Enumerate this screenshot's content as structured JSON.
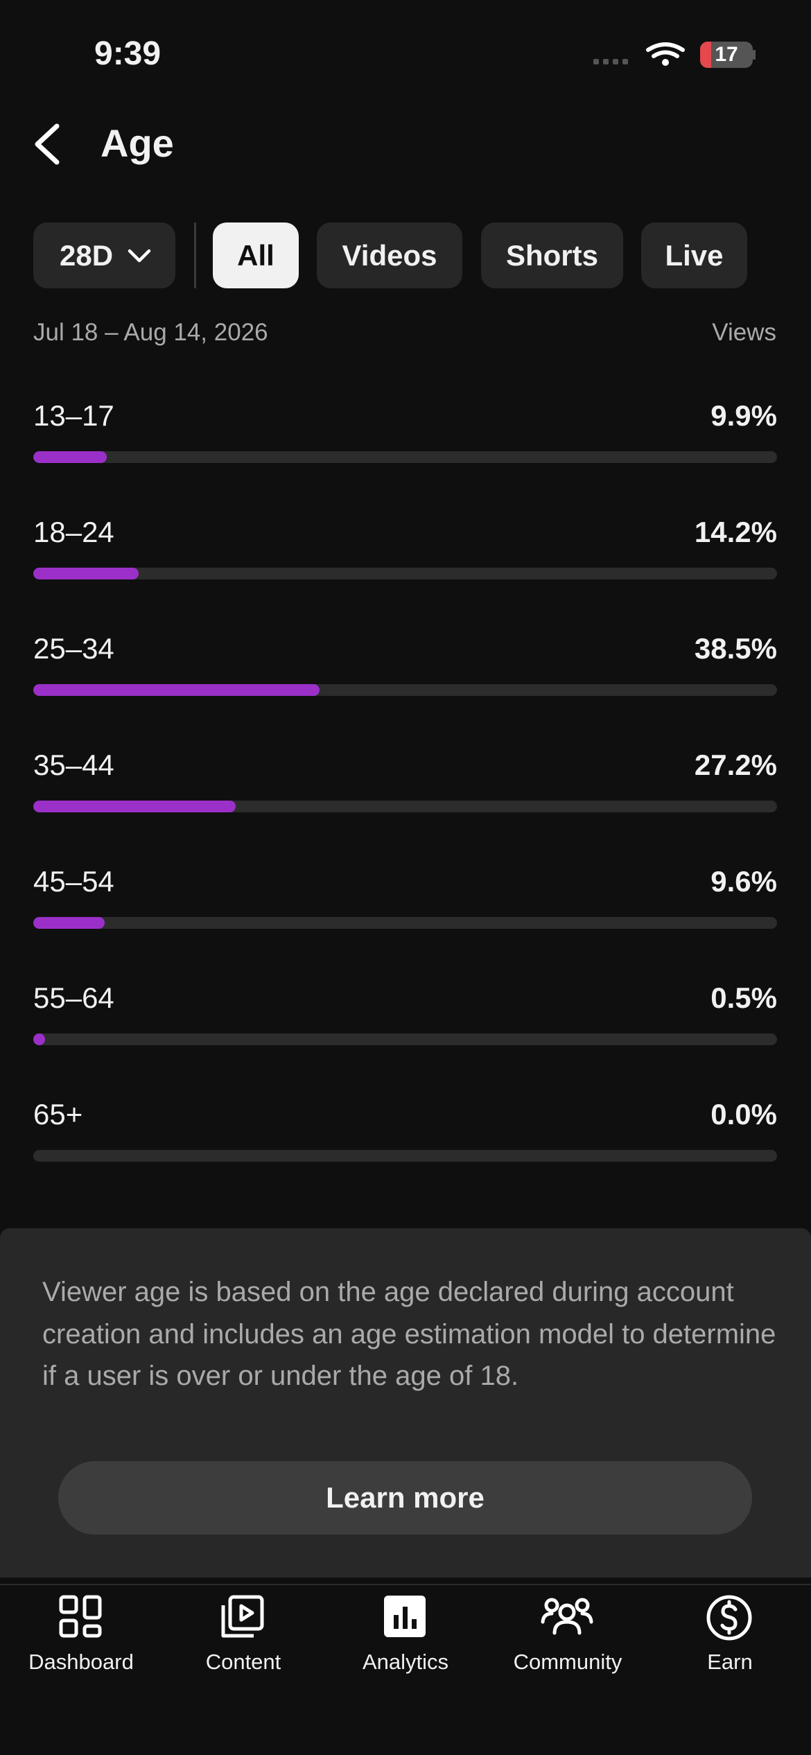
{
  "status": {
    "time": "9:39",
    "battery": "17"
  },
  "header": {
    "title": "Age"
  },
  "filters": {
    "period": "28D",
    "tabs": [
      "All",
      "Videos",
      "Shorts",
      "Live"
    ],
    "selected": "All"
  },
  "date_range": "Jul 18 – Aug 14, 2026",
  "metric": "Views",
  "chart_data": {
    "type": "bar",
    "orientation": "horizontal",
    "categories": [
      "13–17",
      "18–24",
      "25–34",
      "35–44",
      "45–54",
      "55–64",
      "65+"
    ],
    "values": [
      9.9,
      14.2,
      38.5,
      27.2,
      9.6,
      0.5,
      0.0
    ],
    "value_labels": [
      "9.9%",
      "14.2%",
      "38.5%",
      "27.2%",
      "9.6%",
      "0.5%",
      "0.0%"
    ],
    "xlim": [
      0,
      100
    ],
    "color": "#9b30c9"
  },
  "info": {
    "text": "Viewer age is based on the age declared during account creation and includes an age estimation model to determine if a user is over or under the age of 18.",
    "button": "Learn more"
  },
  "nav": [
    "Dashboard",
    "Content",
    "Analytics",
    "Community",
    "Earn"
  ]
}
